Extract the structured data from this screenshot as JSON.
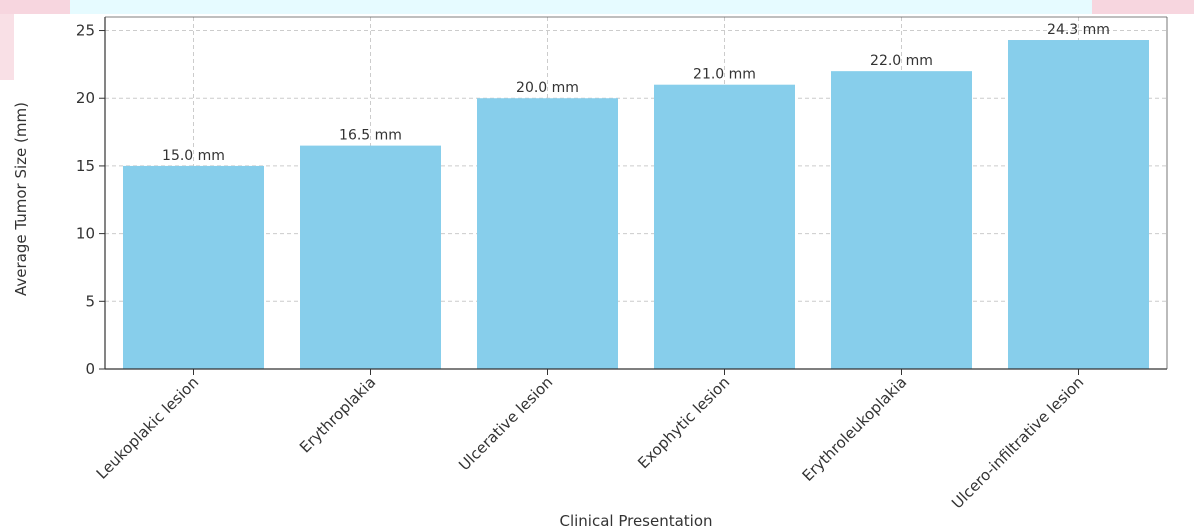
{
  "chart_data": {
    "type": "bar",
    "categories": [
      "Leukoplakic lesion",
      "Erythroplakia",
      "Ulcerative lesion",
      "Exophytic lesion",
      "Erythroleukoplakia",
      "Ulcero-infiltrative lesion"
    ],
    "values": [
      15.0,
      16.5,
      20.0,
      21.0,
      22.0,
      24.3
    ],
    "data_labels": [
      "15.0 mm",
      "16.5 mm",
      "20.0 mm",
      "21.0 mm",
      "22.0 mm",
      "24.3 mm"
    ],
    "xlabel": "Clinical Presentation",
    "ylabel": "Average Tumor Size (mm)",
    "ylim": [
      0,
      26
    ],
    "yticks": [
      0,
      5,
      10,
      15,
      20,
      25
    ],
    "ytick_labels": [
      "0",
      "5",
      "10",
      "15",
      "20",
      "25"
    ],
    "grid": true,
    "bar_color": "#87CEEB",
    "grid_color": "#cccccc"
  }
}
